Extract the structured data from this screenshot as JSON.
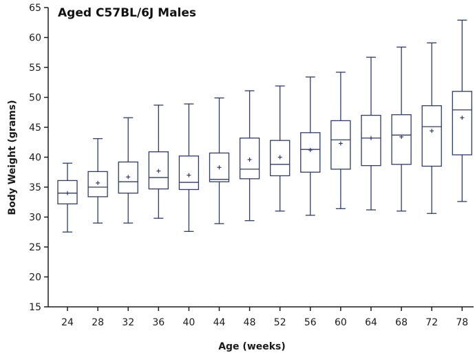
{
  "chart_data": {
    "type": "boxplot",
    "title": "Aged C57BL/6J Males",
    "xlabel": "Age (weeks)",
    "ylabel": "Body Weight (grams)",
    "ylim": [
      15,
      65
    ],
    "yticks": [
      "15",
      "20",
      "25",
      "30",
      "35",
      "40",
      "45",
      "50",
      "55",
      "60",
      "65"
    ],
    "categories": [
      "24",
      "28",
      "32",
      "36",
      "40",
      "44",
      "48",
      "52",
      "56",
      "60",
      "64",
      "68",
      "72",
      "78"
    ],
    "series": [
      {
        "whisker_low": [
          27.5,
          29.0,
          29.0,
          29.8,
          27.6,
          28.9,
          29.4,
          31.0,
          30.3,
          31.4,
          31.2,
          31.0,
          30.6,
          32.6
        ],
        "q1": [
          32.2,
          33.4,
          34.0,
          34.7,
          34.6,
          35.9,
          36.4,
          36.9,
          37.5,
          38.0,
          38.6,
          38.8,
          38.5,
          40.4
        ],
        "median": [
          34.0,
          35.0,
          35.9,
          36.6,
          35.8,
          36.3,
          38.0,
          38.8,
          41.3,
          42.9,
          43.2,
          43.7,
          45.1,
          47.9
        ],
        "q3": [
          36.1,
          37.6,
          39.2,
          40.9,
          40.2,
          40.7,
          43.2,
          42.8,
          44.1,
          46.1,
          47.0,
          47.1,
          48.6,
          51.0
        ],
        "whisker_high": [
          39.0,
          43.1,
          46.6,
          48.7,
          48.9,
          49.9,
          51.1,
          51.9,
          53.4,
          54.2,
          56.7,
          58.4,
          59.1,
          62.9
        ],
        "mean": [
          34.0,
          35.7,
          36.7,
          37.7,
          37.0,
          38.3,
          39.6,
          40.0,
          41.2,
          42.3,
          43.2,
          43.4,
          44.4,
          46.6
        ]
      }
    ],
    "colors": {
      "box": "#2b3a6b",
      "axis": "#1a1a1a"
    },
    "grid": false,
    "legend": "none"
  }
}
